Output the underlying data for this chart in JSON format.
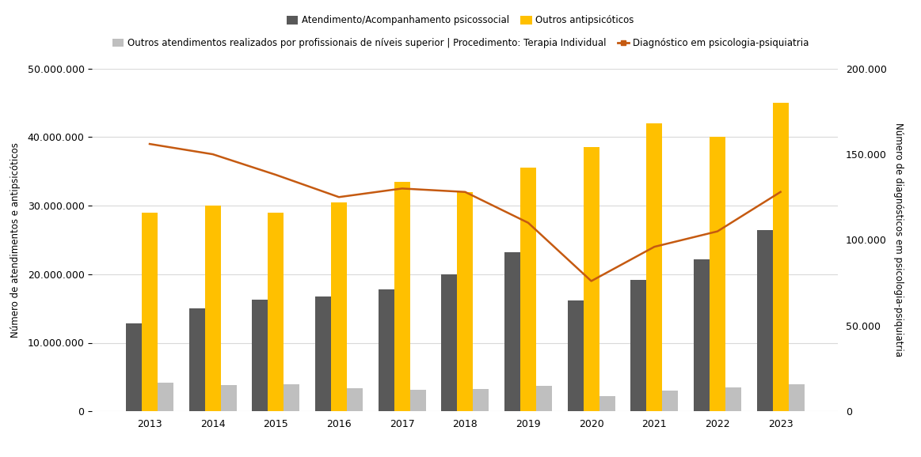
{
  "years": [
    2013,
    2014,
    2015,
    2016,
    2017,
    2018,
    2019,
    2020,
    2021,
    2022,
    2023
  ],
  "atendimento": [
    12800000,
    15000000,
    16300000,
    16700000,
    17800000,
    20000000,
    23200000,
    16200000,
    19200000,
    22200000,
    26400000
  ],
  "outros_antipsico": [
    29000000,
    30000000,
    29000000,
    30500000,
    33500000,
    32000000,
    35500000,
    38500000,
    42000000,
    40000000,
    45000000
  ],
  "outros_atend": [
    4200000,
    3800000,
    4000000,
    3400000,
    3100000,
    3200000,
    3700000,
    2200000,
    3000000,
    3500000,
    3900000
  ],
  "diagnostico": [
    156000,
    150000,
    138000,
    125000,
    130000,
    128000,
    110000,
    76000,
    96000,
    105000,
    128000
  ],
  "bar_color_atend": "#595959",
  "bar_color_antipsico": "#FFC000",
  "bar_color_outros": "#BFBFBF",
  "line_color": "#C55A11",
  "left_ylim": [
    0,
    50000000
  ],
  "right_ylim": [
    0,
    200000
  ],
  "left_yticks": [
    0,
    10000000,
    20000000,
    30000000,
    40000000,
    50000000
  ],
  "right_yticks": [
    0,
    50000,
    100000,
    150000,
    200000
  ],
  "left_ylabel": "Número de atendimentos e antipsicóticos",
  "right_ylabel": "Número de diagnósticos em psicologia-psiquiatria",
  "legend1_label": "Atendimento/Acompanhamento psicossocial",
  "legend2_label": "Outros antipsicóticos",
  "legend3_label": "Outros atendimentos realizados por profissionais de níveis superior | Procedimento: Terapia Individual",
  "legend4_label": "Diagnóstico em psicologia-psiquiatria",
  "background_color": "#FFFFFF",
  "bar_width": 0.25,
  "grid_color": "#D9D9D9"
}
